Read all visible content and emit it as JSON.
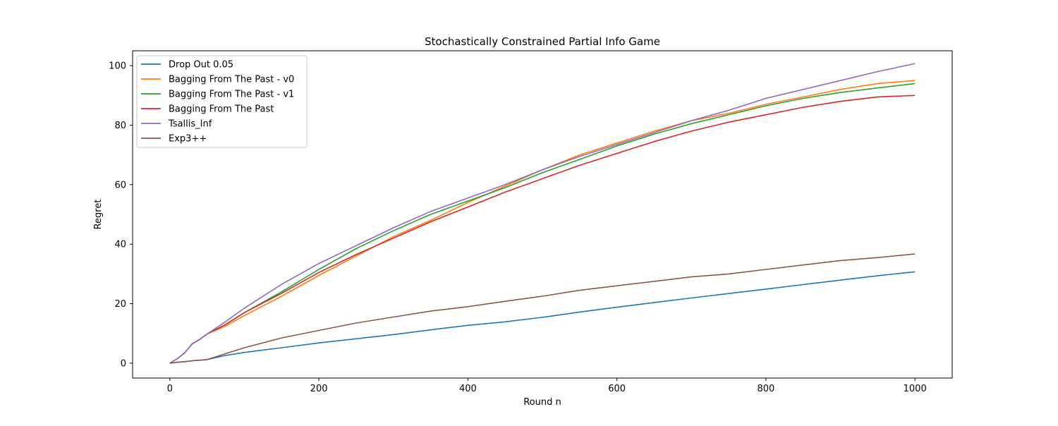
{
  "chart_data": {
    "type": "line",
    "title": "Stochastically Constrained Partial Info Game",
    "xlabel": "Round n",
    "ylabel": "Regret",
    "xlim": [
      -50,
      1050
    ],
    "ylim": [
      -5,
      105
    ],
    "xticks": [
      0,
      200,
      400,
      600,
      800,
      1000
    ],
    "yticks": [
      0,
      20,
      40,
      60,
      80,
      100
    ],
    "grid": false,
    "legend_position": "upper-left",
    "x": [
      0,
      10,
      20,
      30,
      40,
      50,
      75,
      100,
      150,
      200,
      250,
      300,
      350,
      400,
      450,
      500,
      550,
      600,
      650,
      700,
      750,
      800,
      850,
      900,
      950,
      1000
    ],
    "series": [
      {
        "name": "Drop Out  0.05",
        "color": "#1f77b4",
        "values": [
          0,
          0.3,
          0.5,
          0.8,
          1.0,
          1.2,
          2.6,
          3.6,
          5.2,
          6.8,
          8.2,
          9.6,
          11.2,
          12.7,
          13.9,
          15.4,
          17.2,
          18.8,
          20.4,
          21.9,
          23.4,
          24.9,
          26.4,
          27.9,
          29.4,
          30.7
        ]
      },
      {
        "name": "Bagging From The Past - v0",
        "color": "#ff7f0e",
        "values": [
          0,
          1.5,
          3.5,
          6.5,
          8.0,
          9.8,
          12.5,
          16.0,
          22.5,
          29.5,
          36.0,
          42.5,
          48.0,
          54.0,
          59.5,
          65.0,
          70.0,
          74.0,
          78.0,
          81.5,
          84.0,
          87.0,
          89.5,
          92.0,
          94.0,
          95.0
        ]
      },
      {
        "name": "Bagging From The Past - v1",
        "color": "#2ca02c",
        "values": [
          0,
          1.5,
          3.5,
          6.5,
          8.0,
          9.8,
          13.0,
          17.0,
          24.0,
          31.5,
          38.5,
          44.5,
          50.0,
          54.5,
          59.0,
          64.0,
          68.5,
          73.0,
          77.0,
          80.5,
          83.5,
          86.5,
          89.0,
          91.0,
          92.5,
          94.0
        ]
      },
      {
        "name": "Bagging From The Past",
        "color": "#d62728",
        "values": [
          0,
          1.5,
          3.5,
          6.5,
          8.0,
          9.8,
          13.0,
          17.0,
          23.5,
          30.5,
          36.5,
          42.0,
          47.5,
          52.5,
          57.5,
          62.0,
          66.5,
          70.5,
          74.5,
          78.0,
          81.0,
          83.5,
          86.0,
          88.0,
          89.5,
          90.0
        ]
      },
      {
        "name": "Tsallis_Inf",
        "color": "#9467bd",
        "values": [
          0,
          1.5,
          3.5,
          6.5,
          8.0,
          9.8,
          14.0,
          18.5,
          26.5,
          33.5,
          39.5,
          45.5,
          51.0,
          55.5,
          60.0,
          65.0,
          69.5,
          73.5,
          77.5,
          81.5,
          85.0,
          89.0,
          92.0,
          95.0,
          98.0,
          100.7
        ]
      },
      {
        "name": "Exp3++",
        "color": "#8c564b",
        "values": [
          0,
          0.3,
          0.5,
          0.8,
          1.0,
          1.2,
          3.2,
          5.2,
          8.5,
          11.0,
          13.5,
          15.5,
          17.5,
          19.0,
          20.8,
          22.5,
          24.5,
          26.0,
          27.5,
          29.0,
          30.0,
          31.5,
          33.0,
          34.5,
          35.5,
          36.7
        ]
      }
    ]
  }
}
